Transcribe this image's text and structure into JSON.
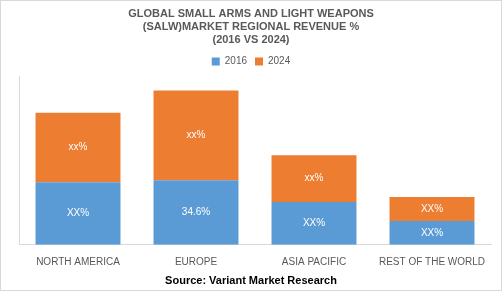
{
  "chart_data": {
    "type": "bar",
    "title": [
      "GLOBAL SMALL ARMS AND LIGHT WEAPONS",
      "(SALW)MARKET REGIONAL REVENUE %",
      "(2016 VS 2024)"
    ],
    "annotation": "Source: Variant Market Research",
    "categories": [
      "NORTH AMERICA",
      "EUROPE",
      "ASIA PACIFIC",
      "REST OF THE WORLD"
    ],
    "series": [
      {
        "name": "2016",
        "color": "#5b9bd5",
        "values": [
          33.5,
          34.6,
          22.9,
          12.8
        ],
        "value_labels": [
          "XX%",
          "34.6%",
          "XX%",
          "XX%"
        ]
      },
      {
        "name": "2024",
        "color": "#ed7d31",
        "values": [
          37.2,
          47.9,
          25.0,
          12.8
        ],
        "value_labels": [
          "xx%",
          "xx%",
          "xx%",
          "XX%"
        ]
      }
    ],
    "ylim": [
      0,
      90
    ],
    "stacked": true,
    "data_labels": true,
    "legend": "top",
    "grid": false,
    "tick_labels": "x"
  }
}
